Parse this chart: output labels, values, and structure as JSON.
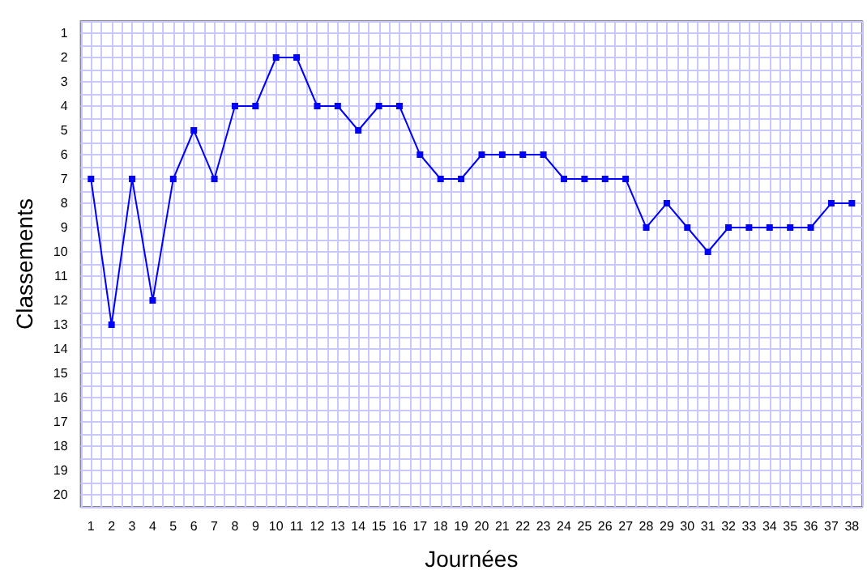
{
  "chart_data": {
    "type": "line",
    "xlabel": "Journées",
    "ylabel": "Classements",
    "x": [
      1,
      2,
      3,
      4,
      5,
      6,
      7,
      8,
      9,
      10,
      11,
      12,
      13,
      14,
      15,
      16,
      17,
      18,
      19,
      20,
      21,
      22,
      23,
      24,
      25,
      26,
      27,
      28,
      29,
      30,
      31,
      32,
      33,
      34,
      35,
      36,
      37,
      38
    ],
    "series": [
      {
        "color": "#0000ff",
        "values": [
          7,
          13,
          7,
          12,
          7,
          5,
          7,
          4,
          4,
          2,
          2,
          4,
          4,
          5,
          4,
          4,
          6,
          7,
          7,
          6,
          6,
          6,
          6,
          7,
          7,
          7,
          7,
          9,
          8,
          9,
          10,
          9,
          9,
          9,
          9,
          9,
          8,
          8
        ]
      }
    ],
    "xlim": [
      0.5,
      38.5
    ],
    "xticks": [
      1,
      2,
      3,
      4,
      5,
      6,
      7,
      8,
      9,
      10,
      11,
      12,
      13,
      14,
      15,
      16,
      17,
      18,
      19,
      20,
      21,
      22,
      23,
      24,
      25,
      26,
      27,
      28,
      29,
      30,
      31,
      32,
      33,
      34,
      35,
      36,
      37,
      38
    ],
    "ylim": [
      20.5,
      0.5
    ],
    "yticks": [
      1,
      2,
      3,
      4,
      5,
      6,
      7,
      8,
      9,
      10,
      11,
      12,
      13,
      14,
      15,
      16,
      17,
      18,
      19,
      20
    ],
    "grid": true,
    "marker": "square",
    "line_style": "solid"
  }
}
